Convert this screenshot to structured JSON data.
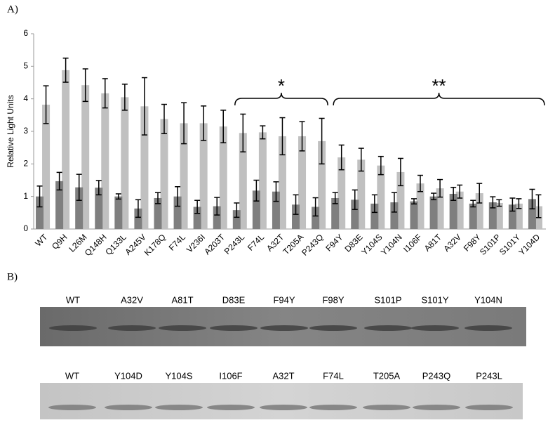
{
  "chart_data": {
    "type": "bar",
    "panel_label": "A)",
    "ylabel": "Relative Light Units",
    "categories": [
      "WT",
      "Q9H",
      "L26M",
      "Q148H",
      "Q133L",
      "A245V",
      "K178Q",
      "F74L",
      "V236I",
      "A203T",
      "P243L",
      "F74L",
      "A32T",
      "T205A",
      "P243Q",
      "F94Y",
      "D83E",
      "Y104S",
      "Y104N",
      "I106F",
      "A81T",
      "A32V",
      "F98Y",
      "S101P",
      "S101Y",
      "Y104D"
    ],
    "series": [
      {
        "color": "#c0c0c0",
        "values": [
          3.82,
          4.88,
          4.42,
          4.17,
          4.05,
          3.77,
          3.38,
          3.25,
          3.25,
          3.15,
          2.95,
          2.97,
          2.85,
          2.85,
          2.7,
          2.2,
          2.13,
          1.95,
          1.75,
          1.4,
          1.25,
          1.15,
          1.1,
          0.8,
          0.78,
          0.7
        ],
        "errors": [
          0.58,
          0.37,
          0.5,
          0.45,
          0.4,
          0.88,
          0.45,
          0.63,
          0.53,
          0.5,
          0.58,
          0.2,
          0.57,
          0.45,
          0.7,
          0.38,
          0.35,
          0.28,
          0.42,
          0.25,
          0.27,
          0.2,
          0.3,
          0.1,
          0.15,
          0.35
        ]
      },
      {
        "color": "#7f7f7f",
        "values": [
          1.0,
          1.47,
          1.28,
          1.27,
          1.0,
          0.63,
          0.95,
          1.0,
          0.68,
          0.7,
          0.58,
          1.18,
          1.15,
          0.75,
          0.68,
          0.95,
          0.9,
          0.78,
          0.82,
          0.85,
          1.0,
          1.08,
          0.78,
          0.82,
          0.75,
          0.92
        ],
        "errors": [
          0.32,
          0.27,
          0.4,
          0.22,
          0.08,
          0.27,
          0.17,
          0.3,
          0.2,
          0.27,
          0.22,
          0.32,
          0.3,
          0.3,
          0.28,
          0.17,
          0.3,
          0.27,
          0.3,
          0.08,
          0.1,
          0.2,
          0.1,
          0.17,
          0.2,
          0.3
        ]
      }
    ],
    "ylim": [
      0,
      6
    ],
    "yticks": [
      0,
      1,
      2,
      3,
      4,
      5,
      6
    ],
    "grid": false,
    "annotations": [
      {
        "text": "*"
      },
      {
        "text": "**"
      }
    ]
  },
  "blot": {
    "panel_label": "B)",
    "rows": [
      {
        "labels": [
          "WT",
          "A32V",
          "A81T",
          "D83E",
          "F94Y",
          "F98Y",
          "S101P",
          "S101Y",
          "Y104N"
        ]
      },
      {
        "labels": [
          "WT",
          "Y104D",
          "Y104S",
          "I106F",
          "A32T",
          "F74L",
          "T205A",
          "P243Q",
          "P243L"
        ]
      }
    ]
  }
}
